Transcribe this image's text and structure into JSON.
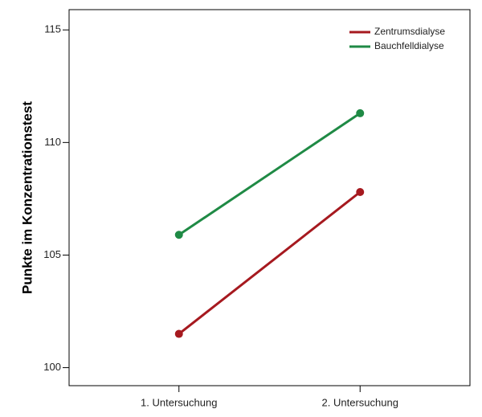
{
  "chart_data": {
    "type": "line",
    "y_label": "Punkte im Konzentrationstest",
    "categories": [
      "1. Untersuchung",
      "2. Untersuchung"
    ],
    "series": [
      {
        "name": "Zentrumsdialyse",
        "color": "#a6191f",
        "values": [
          101.5,
          107.8
        ]
      },
      {
        "name": "Bauchfelldialyse",
        "color": "#1f8a45",
        "values": [
          105.9,
          111.3
        ]
      }
    ],
    "ylim": [
      99.2,
      115.9
    ],
    "yticks": [
      100,
      105,
      110,
      115
    ],
    "legend": "upper right"
  }
}
